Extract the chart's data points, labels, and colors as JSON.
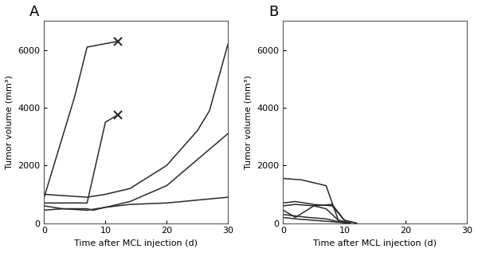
{
  "panel_A_label": "A",
  "panel_B_label": "B",
  "xlabel": "Time after MCL injection (d)",
  "ylabel": "Tumor volume (mm³)",
  "xlim": [
    0,
    30
  ],
  "ylim": [
    0,
    7000
  ],
  "yticks": [
    0,
    2000,
    4000,
    6000
  ],
  "xticks": [
    0,
    10,
    20,
    30
  ],
  "line_color": "#2a2a2a",
  "background_color": "#ffffff",
  "panel_A_lines": [
    {
      "x": [
        0,
        5,
        7,
        12
      ],
      "y": [
        900,
        4400,
        6100,
        6300
      ],
      "death_marker": [
        12,
        6300
      ]
    },
    {
      "x": [
        0,
        7,
        10,
        12
      ],
      "y": [
        700,
        700,
        3500,
        3750
      ],
      "death_marker": [
        12,
        3750
      ]
    },
    {
      "x": [
        0,
        7,
        10,
        14,
        20,
        25,
        27,
        30
      ],
      "y": [
        1000,
        900,
        1000,
        1200,
        2000,
        3200,
        3900,
        6200
      ],
      "death_marker": null
    },
    {
      "x": [
        0,
        3,
        7,
        10,
        14,
        20,
        25,
        30
      ],
      "y": [
        600,
        500,
        450,
        550,
        750,
        1300,
        2200,
        3100
      ],
      "death_marker": null
    },
    {
      "x": [
        0,
        3,
        7,
        8,
        10,
        14,
        20,
        25,
        30
      ],
      "y": [
        450,
        500,
        500,
        450,
        550,
        650,
        700,
        800,
        900
      ],
      "death_marker": null
    }
  ],
  "panel_B_lines": [
    {
      "x": [
        0,
        3,
        7,
        9,
        11
      ],
      "y": [
        1550,
        1500,
        1300,
        100,
        0
      ]
    },
    {
      "x": [
        0,
        2,
        5,
        8,
        10,
        12
      ],
      "y": [
        700,
        750,
        650,
        600,
        100,
        0
      ]
    },
    {
      "x": [
        0,
        2,
        5,
        7,
        9,
        11
      ],
      "y": [
        600,
        650,
        600,
        500,
        100,
        0
      ]
    },
    {
      "x": [
        0,
        2,
        5,
        8,
        10,
        12
      ],
      "y": [
        450,
        200,
        600,
        650,
        100,
        0
      ]
    },
    {
      "x": [
        0,
        2,
        4,
        7,
        9,
        11
      ],
      "y": [
        300,
        250,
        200,
        150,
        50,
        0
      ]
    },
    {
      "x": [
        0,
        2,
        5,
        8,
        11
      ],
      "y": [
        200,
        150,
        100,
        50,
        0
      ]
    }
  ]
}
